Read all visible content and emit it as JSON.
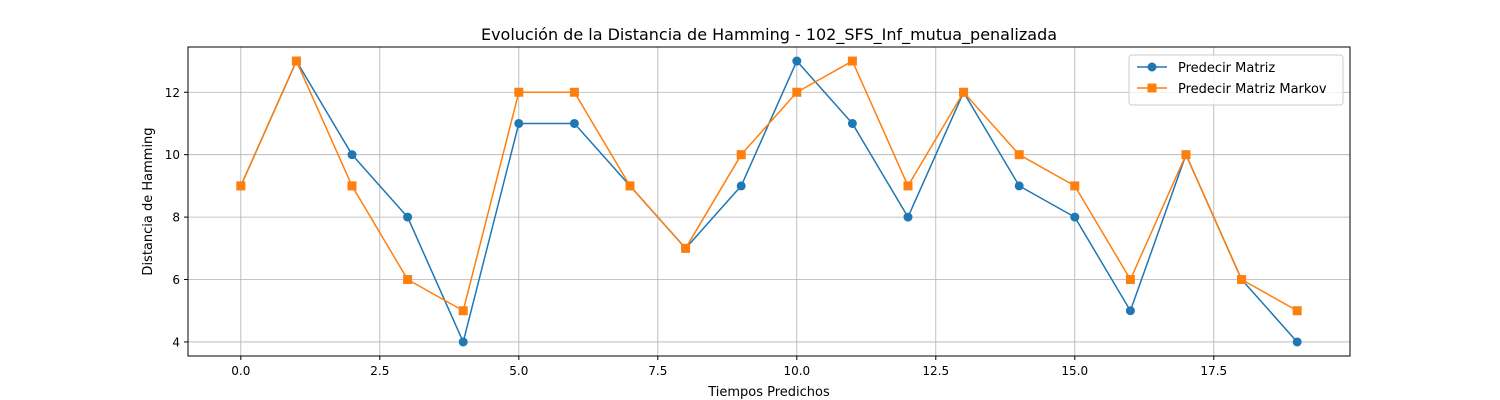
{
  "chart_data": {
    "type": "line",
    "title": "Evolución de la Distancia de Hamming - 102_SFS_Inf_mutua_penalizada",
    "xlabel": "Tiempos Predichos",
    "ylabel": "Distancia de Hamming",
    "x": [
      0,
      1,
      2,
      3,
      4,
      5,
      6,
      7,
      8,
      9,
      10,
      11,
      12,
      13,
      14,
      15,
      16,
      17,
      18,
      19
    ],
    "xlim": [
      -0.95,
      19.95
    ],
    "ylim": [
      3.55,
      13.45
    ],
    "xticks": [
      0.0,
      2.5,
      5.0,
      7.5,
      10.0,
      12.5,
      15.0,
      17.5
    ],
    "xtick_labels": [
      "0.0",
      "2.5",
      "5.0",
      "7.5",
      "10.0",
      "12.5",
      "15.0",
      "17.5"
    ],
    "yticks": [
      4,
      6,
      8,
      10,
      12
    ],
    "ytick_labels": [
      "4",
      "6",
      "8",
      "10",
      "12"
    ],
    "grid": true,
    "legend_position": "top-right",
    "series": [
      {
        "name": "Predecir Matriz",
        "color": "#1f77b4",
        "marker": "circle",
        "values": [
          9,
          13,
          10,
          8,
          4,
          11,
          11,
          9,
          7,
          9,
          13,
          11,
          8,
          12,
          9,
          8,
          5,
          10,
          6,
          4
        ]
      },
      {
        "name": "Predecir Matriz Markov",
        "color": "#ff7f0e",
        "marker": "square",
        "values": [
          9,
          13,
          9,
          6,
          5,
          12,
          12,
          9,
          7,
          10,
          12,
          13,
          9,
          12,
          10,
          9,
          6,
          10,
          6,
          5
        ]
      }
    ]
  }
}
